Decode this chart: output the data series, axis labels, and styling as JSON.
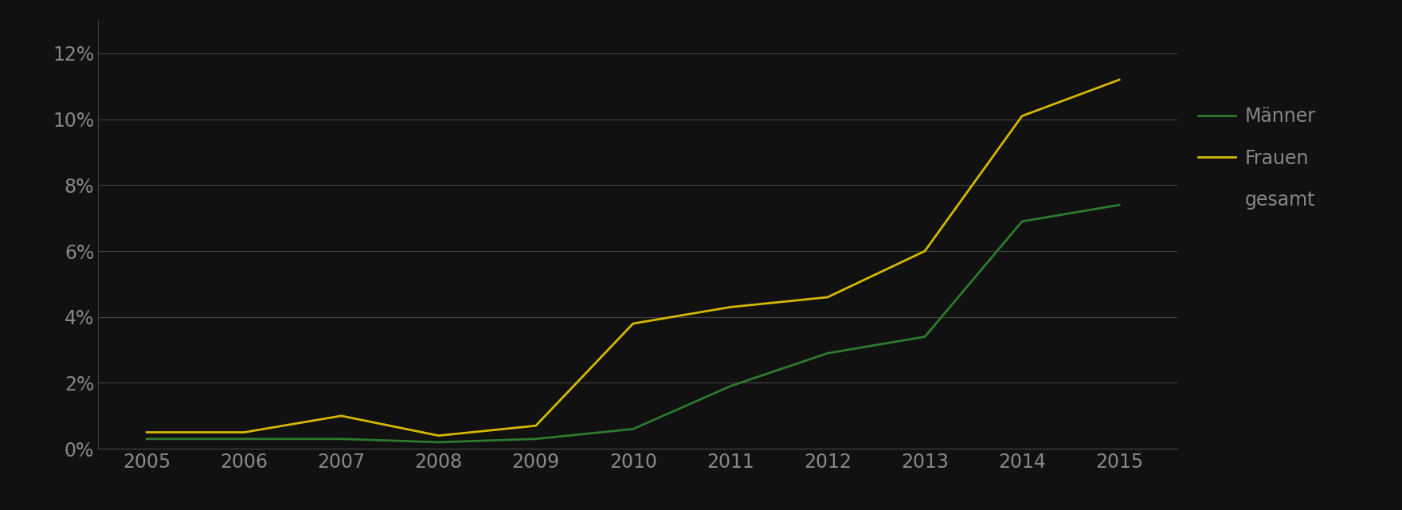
{
  "years": [
    2005,
    2006,
    2007,
    2008,
    2009,
    2010,
    2011,
    2012,
    2013,
    2014,
    2015
  ],
  "maenner": [
    0.003,
    0.003,
    0.003,
    0.002,
    0.003,
    0.006,
    0.019,
    0.029,
    0.034,
    0.069,
    0.074
  ],
  "frauen": [
    0.005,
    0.005,
    0.01,
    0.004,
    0.007,
    0.038,
    0.043,
    0.046,
    0.06,
    0.101,
    0.112
  ],
  "maenner_color": "#2d7a2d",
  "frauen_color": "#d4b800",
  "background_color": "#111111",
  "grid_color": "#444444",
  "text_color": "#888888",
  "tick_color": "#888888",
  "legend_labels": [
    "Männer",
    "Frauen",
    "gesamt"
  ],
  "ylim": [
    0,
    0.13
  ],
  "yticks": [
    0,
    0.02,
    0.04,
    0.06,
    0.08,
    0.1,
    0.12
  ],
  "ytick_labels": [
    "0%",
    "2%",
    "4%",
    "6%",
    "8%",
    "10%",
    "12%"
  ],
  "xlim_left": 2004.5,
  "xlim_right": 2015.6,
  "line_width": 2.0,
  "tick_fontsize": 17,
  "legend_fontsize": 17
}
